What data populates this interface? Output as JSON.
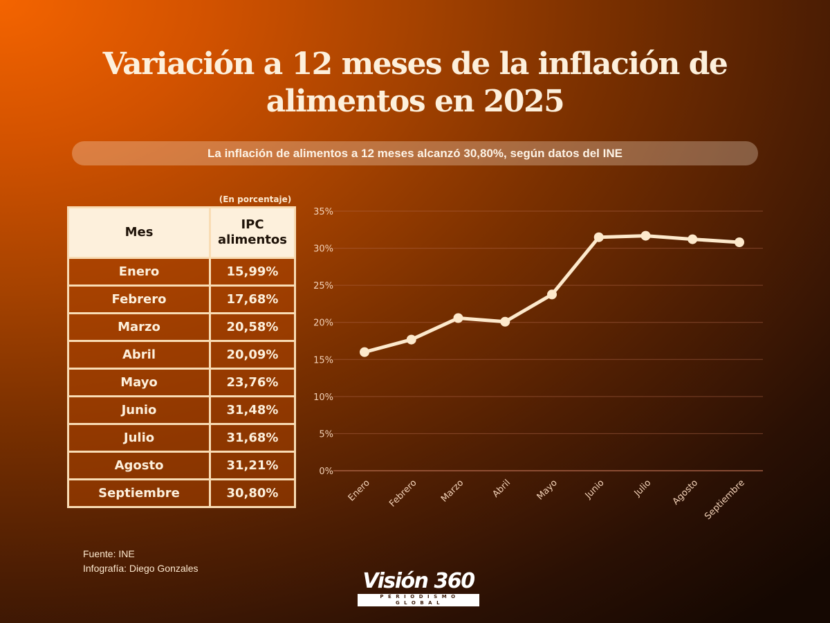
{
  "header": {
    "title_line1": "Variación a 12 meses de la inflación de",
    "title_line2": "alimentos en 2025",
    "subtitle": "La inflación de alimentos a 12 meses alcanzó 30,80%, según datos del INE"
  },
  "table": {
    "unit_note": "(En porcentaje)",
    "headers": {
      "month": "Mes",
      "ipc_line1": "IPC",
      "ipc_line2": "alimentos"
    },
    "rows": [
      {
        "month": "Enero",
        "value": "15,99%"
      },
      {
        "month": "Febrero",
        "value": "17,68%"
      },
      {
        "month": "Marzo",
        "value": "20,58%"
      },
      {
        "month": "Abril",
        "value": "20,09%"
      },
      {
        "month": "Mayo",
        "value": "23,76%"
      },
      {
        "month": "Junio",
        "value": "31,48%"
      },
      {
        "month": "Julio",
        "value": "31,68%"
      },
      {
        "month": "Agosto",
        "value": "31,21%"
      },
      {
        "month": "Septiembre",
        "value": "30,80%"
      }
    ]
  },
  "chart_data": {
    "type": "line",
    "title": "Variación a 12 meses de la inflación de alimentos en 2025",
    "xlabel": "",
    "ylabel": "",
    "categories": [
      "Enero",
      "Febrero",
      "Marzo",
      "Abril",
      "Mayo",
      "Junio",
      "Julio",
      "Agosto",
      "Septiembre"
    ],
    "series": [
      {
        "name": "IPC alimentos",
        "values": [
          15.99,
          17.68,
          20.58,
          20.09,
          23.76,
          31.48,
          31.68,
          31.21,
          30.8
        ]
      }
    ],
    "ylim": [
      0,
      35
    ],
    "yticks": [
      0,
      5,
      10,
      15,
      20,
      25,
      30,
      35
    ],
    "ytick_labels": [
      "0%",
      "5%",
      "10%",
      "15%",
      "20%",
      "25%",
      "30%",
      "35%"
    ],
    "grid": true,
    "legend": "none",
    "colors": {
      "line": "#fde9cc",
      "grid": "#b0664a",
      "tick_text": "#f3d2b8"
    }
  },
  "footer": {
    "source": "Fuente:  INE",
    "credit": "Infografía: Diego Gonzales"
  },
  "logo": {
    "brand": "Visión 360",
    "tagline": "PERIODISMO GLOBAL"
  }
}
